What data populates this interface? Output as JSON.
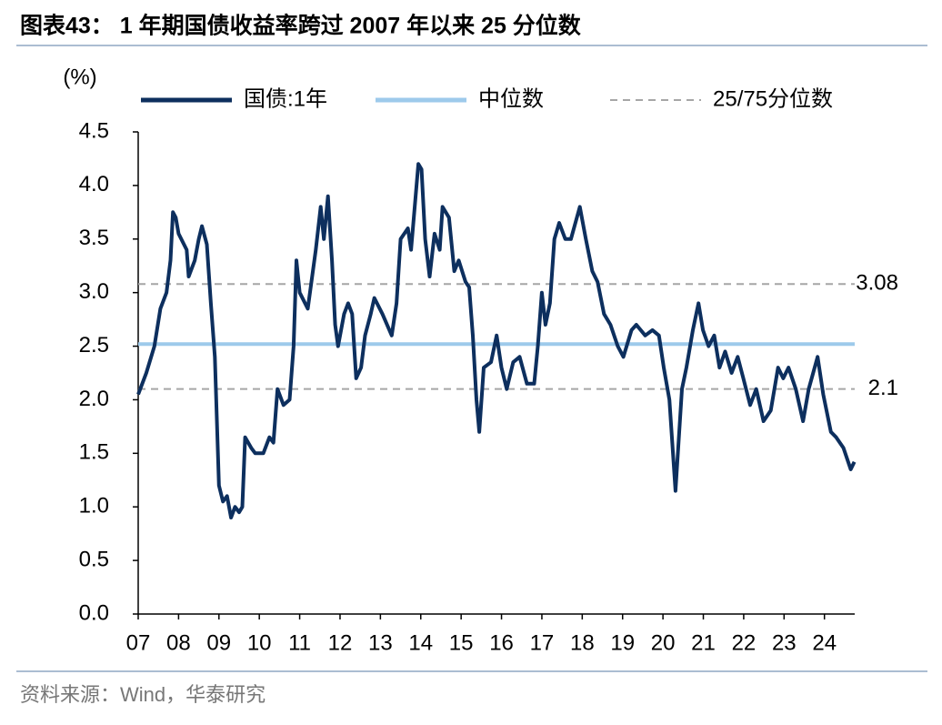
{
  "chart_data": {
    "type": "line",
    "title": "图表43： 1 年期国债收益率跨过 2007 年以来 25 分位数",
    "y_label": "(%)",
    "source": "资料来源：Wind，华泰研究",
    "xlim": [
      2007,
      2024.75
    ],
    "xticks": [
      {
        "value": 2007,
        "label": "07"
      },
      {
        "value": 2008,
        "label": "08"
      },
      {
        "value": 2009,
        "label": "09"
      },
      {
        "value": 2010,
        "label": "10"
      },
      {
        "value": 2011,
        "label": "11"
      },
      {
        "value": 2012,
        "label": "12"
      },
      {
        "value": 2013,
        "label": "13"
      },
      {
        "value": 2014,
        "label": "14"
      },
      {
        "value": 2015,
        "label": "15"
      },
      {
        "value": 2016,
        "label": "16"
      },
      {
        "value": 2017,
        "label": "17"
      },
      {
        "value": 2018,
        "label": "18"
      },
      {
        "value": 2019,
        "label": "19"
      },
      {
        "value": 2020,
        "label": "20"
      },
      {
        "value": 2021,
        "label": "21"
      },
      {
        "value": 2022,
        "label": "22"
      },
      {
        "value": 2023,
        "label": "23"
      },
      {
        "value": 2024,
        "label": "24"
      }
    ],
    "ylim": [
      0,
      4.5
    ],
    "yticks": [
      {
        "value": 0,
        "label": "0.0"
      },
      0.5,
      {
        "value": 1,
        "label": "1.0"
      },
      1.5,
      {
        "value": 2,
        "label": "2.0"
      },
      2.5,
      {
        "value": 3,
        "label": "3.0"
      },
      3.5,
      {
        "value": 4,
        "label": "4.0"
      },
      4.5
    ],
    "x": [
      2007.0,
      2007.2,
      2007.4,
      2007.55,
      2007.7,
      2007.8,
      2007.86,
      2007.93,
      2008.0,
      2008.2,
      2008.25,
      2008.4,
      2008.5,
      2008.58,
      2008.7,
      2008.8,
      2008.9,
      2009.0,
      2009.1,
      2009.2,
      2009.3,
      2009.4,
      2009.5,
      2009.58,
      2009.65,
      2009.8,
      2009.9,
      2010.1,
      2010.25,
      2010.35,
      2010.45,
      2010.6,
      2010.75,
      2010.85,
      2010.92,
      2011.0,
      2011.2,
      2011.4,
      2011.52,
      2011.6,
      2011.7,
      2011.8,
      2011.88,
      2011.95,
      2012.1,
      2012.2,
      2012.3,
      2012.4,
      2012.52,
      2012.62,
      2012.76,
      2012.85,
      2013.05,
      2013.28,
      2013.4,
      2013.5,
      2013.68,
      2013.76,
      2013.85,
      2013.94,
      2014.02,
      2014.11,
      2014.22,
      2014.34,
      2014.47,
      2014.54,
      2014.7,
      2014.83,
      2014.94,
      2015.11,
      2015.2,
      2015.29,
      2015.38,
      2015.45,
      2015.56,
      2015.74,
      2015.88,
      2016.0,
      2016.13,
      2016.29,
      2016.45,
      2016.63,
      2016.81,
      2016.9,
      2017.0,
      2017.09,
      2017.2,
      2017.31,
      2017.43,
      2017.58,
      2017.72,
      2017.94,
      2018.09,
      2018.25,
      2018.38,
      2018.54,
      2018.7,
      2018.88,
      2019.02,
      2019.22,
      2019.34,
      2019.56,
      2019.74,
      2019.9,
      2020.02,
      2020.16,
      2020.31,
      2020.47,
      2020.58,
      2020.74,
      2020.88,
      2020.99,
      2021.13,
      2021.27,
      2021.4,
      2021.54,
      2021.7,
      2021.85,
      2021.99,
      2022.16,
      2022.31,
      2022.49,
      2022.67,
      2022.85,
      2022.98,
      2023.11,
      2023.29,
      2023.47,
      2023.61,
      2023.83,
      2023.97,
      2024.16,
      2024.29,
      2024.47,
      2024.65,
      2024.74
    ],
    "series": [
      {
        "name": "国债:1年",
        "color": "#0d2f5e",
        "values": [
          2.05,
          2.25,
          2.5,
          2.85,
          3.0,
          3.3,
          3.75,
          3.7,
          3.55,
          3.4,
          3.15,
          3.3,
          3.5,
          3.62,
          3.45,
          2.9,
          2.4,
          1.2,
          1.05,
          1.1,
          0.9,
          1.0,
          0.95,
          1.0,
          1.65,
          1.55,
          1.5,
          1.5,
          1.65,
          1.6,
          2.1,
          1.95,
          2.0,
          2.5,
          3.3,
          3.0,
          2.85,
          3.4,
          3.8,
          3.5,
          3.9,
          3.3,
          2.7,
          2.5,
          2.8,
          2.9,
          2.8,
          2.2,
          2.3,
          2.6,
          2.8,
          2.95,
          2.8,
          2.6,
          2.9,
          3.5,
          3.6,
          3.4,
          3.8,
          4.2,
          4.15,
          3.5,
          3.15,
          3.55,
          3.4,
          3.8,
          3.7,
          3.2,
          3.3,
          3.1,
          3.05,
          2.6,
          2.0,
          1.7,
          2.3,
          2.35,
          2.6,
          2.3,
          2.1,
          2.35,
          2.4,
          2.15,
          2.15,
          2.5,
          3.0,
          2.7,
          2.9,
          3.5,
          3.65,
          3.5,
          3.5,
          3.8,
          3.5,
          3.2,
          3.1,
          2.8,
          2.7,
          2.5,
          2.4,
          2.65,
          2.7,
          2.6,
          2.65,
          2.6,
          2.3,
          2.0,
          1.15,
          2.1,
          2.3,
          2.65,
          2.9,
          2.65,
          2.5,
          2.6,
          2.3,
          2.45,
          2.25,
          2.4,
          2.2,
          1.95,
          2.1,
          1.8,
          1.9,
          2.3,
          2.2,
          2.3,
          2.1,
          1.8,
          2.1,
          2.4,
          2.05,
          1.7,
          1.65,
          1.55,
          1.35,
          1.42
        ]
      }
    ],
    "reference_lines": [
      {
        "name": "中位数",
        "color": "#9dcaeb",
        "style": "solid",
        "values": [
          2.52
        ]
      },
      {
        "name": "25/75分位数",
        "color": "#a6a6a6",
        "style": "dashed",
        "values": [
          3.08,
          2.1
        ],
        "labeled": true
      }
    ]
  }
}
